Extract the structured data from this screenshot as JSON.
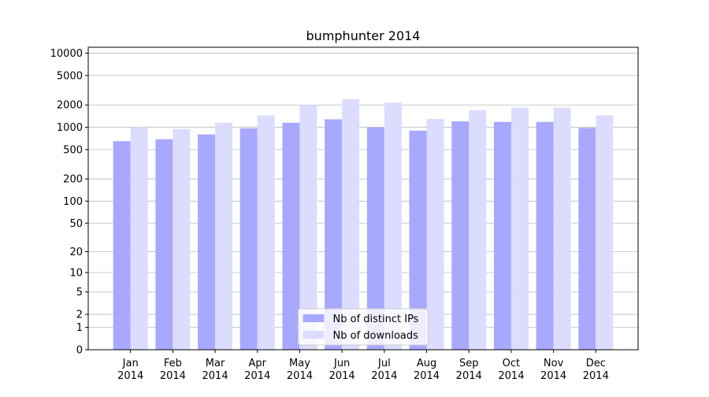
{
  "chart_data": {
    "type": "bar",
    "title": "bumphunter 2014",
    "categories": [
      "Jan\n2014",
      "Feb\n2014",
      "Mar\n2014",
      "Apr\n2014",
      "May\n2014",
      "Jun\n2014",
      "Jul\n2014",
      "Aug\n2014",
      "Sep\n2014",
      "Oct\n2014",
      "Nov\n2014",
      "Dec\n2014"
    ],
    "series": [
      {
        "name": "Nb of distinct IPs",
        "color": "#a8a8ff",
        "values": [
          650,
          690,
          800,
          970,
          1150,
          1280,
          1000,
          900,
          1200,
          1180,
          1180,
          980
        ]
      },
      {
        "name": "Nb of downloads",
        "color": "#dcdcff",
        "values": [
          1000,
          950,
          1150,
          1450,
          2000,
          2400,
          2150,
          1300,
          1700,
          1850,
          1850,
          1450
        ]
      }
    ],
    "yscale": "log1p",
    "ylim": [
      0,
      12000
    ],
    "yticks": [
      0,
      1,
      2,
      5,
      10,
      20,
      50,
      100,
      200,
      500,
      1000,
      2000,
      5000,
      10000
    ],
    "grid": true,
    "legend": "lower center"
  }
}
